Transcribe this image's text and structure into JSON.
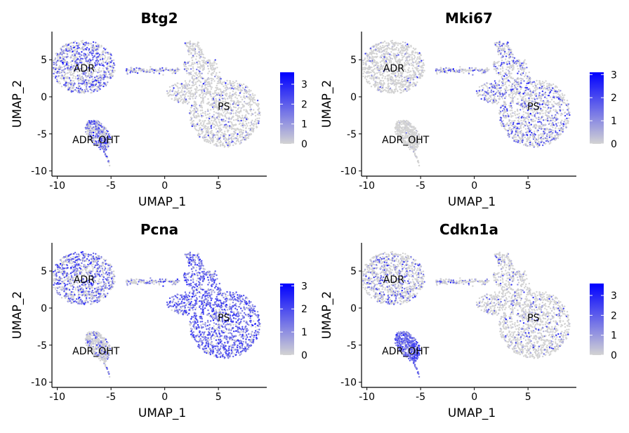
{
  "colors": {
    "low": "#d3d3d3",
    "high": "#0000ff",
    "axis": "#000000"
  },
  "chart_data": [
    {
      "type": "scatter",
      "title": "Btg2",
      "xlabel": "UMAP_1",
      "ylabel": "UMAP_2",
      "xlim": [
        -10.5,
        9.5
      ],
      "ylim": [
        -10.7,
        8.8
      ],
      "xticks": [
        -10,
        -5,
        0,
        5
      ],
      "yticks": [
        -10,
        -5,
        0,
        5
      ],
      "xtick_labels": [
        "-10",
        "-5",
        "0",
        "5"
      ],
      "ytick_labels": [
        "-10",
        "-5",
        "0",
        "5"
      ],
      "cluster_labels": [
        {
          "text": "ADR",
          "x": -7.5,
          "y": 3.9
        },
        {
          "text": "ADR_OHT",
          "x": -6.4,
          "y": -5.8
        },
        {
          "text": "PS",
          "x": 5.5,
          "y": -1.3
        }
      ],
      "color_scale": {
        "min": 0,
        "max": 3.6,
        "ticks": [
          0,
          1,
          2,
          3
        ],
        "tick_labels": [
          "0",
          "1",
          "2",
          "3"
        ]
      },
      "expression_by_cluster": {
        "ADR": 0.45,
        "ADR_OHT": 0.55,
        "PS": 0.08,
        "bridge": 0.35
      }
    },
    {
      "type": "scatter",
      "title": "Mki67",
      "xlabel": "UMAP_1",
      "ylabel": "UMAP_2",
      "xlim": [
        -10.5,
        9.5
      ],
      "ylim": [
        -10.7,
        8.8
      ],
      "xticks": [
        -10,
        -5,
        0,
        5
      ],
      "yticks": [
        -10,
        -5,
        0,
        5
      ],
      "xtick_labels": [
        "-10",
        "-5",
        "0",
        "5"
      ],
      "ytick_labels": [
        "-10",
        "-5",
        "0",
        "5"
      ],
      "cluster_labels": [
        {
          "text": "ADR",
          "x": -7.5,
          "y": 3.9
        },
        {
          "text": "ADR_OHT",
          "x": -6.4,
          "y": -5.8
        },
        {
          "text": "PS",
          "x": 5.5,
          "y": -1.3
        }
      ],
      "color_scale": {
        "min": 0,
        "max": 3.1,
        "ticks": [
          0,
          1,
          2,
          3
        ],
        "tick_labels": [
          "0",
          "1",
          "2",
          "3"
        ]
      },
      "expression_by_cluster": {
        "ADR": 0.05,
        "ADR_OHT": 0.0,
        "PS": 0.3,
        "bridge": 0.35
      }
    },
    {
      "type": "scatter",
      "title": "Pcna",
      "xlabel": "UMAP_1",
      "ylabel": "UMAP_2",
      "xlim": [
        -10.5,
        9.5
      ],
      "ylim": [
        -10.7,
        8.8
      ],
      "xticks": [
        -10,
        -5,
        0,
        5
      ],
      "yticks": [
        -10,
        -5,
        0,
        5
      ],
      "xtick_labels": [
        "-10",
        "-5",
        "0",
        "5"
      ],
      "ytick_labels": [
        "-10",
        "-5",
        "0",
        "5"
      ],
      "cluster_labels": [
        {
          "text": "ADR",
          "x": -7.5,
          "y": 3.9
        },
        {
          "text": "ADR_OHT",
          "x": -6.4,
          "y": -5.8
        },
        {
          "text": "PS",
          "x": 5.5,
          "y": -1.3
        }
      ],
      "color_scale": {
        "min": 0,
        "max": 3.1,
        "ticks": [
          0,
          1,
          2,
          3
        ],
        "tick_labels": [
          "0",
          "1",
          "2",
          "3"
        ]
      },
      "expression_by_cluster": {
        "ADR": 0.55,
        "ADR_OHT": 0.2,
        "PS": 0.8,
        "bridge": 0.4
      }
    },
    {
      "type": "scatter",
      "title": "Cdkn1a",
      "xlabel": "UMAP_1",
      "ylabel": "UMAP_2",
      "xlim": [
        -10.5,
        9.5
      ],
      "ylim": [
        -10.7,
        8.8
      ],
      "xticks": [
        -10,
        -5,
        0,
        5
      ],
      "yticks": [
        -10,
        -5,
        0,
        5
      ],
      "xtick_labels": [
        "-10",
        "-5",
        "0",
        "5"
      ],
      "ytick_labels": [
        "-10",
        "-5",
        "0",
        "5"
      ],
      "cluster_labels": [
        {
          "text": "ADR",
          "x": -7.5,
          "y": 3.9
        },
        {
          "text": "ADR_OHT",
          "x": -6.4,
          "y": -5.8
        },
        {
          "text": "PS",
          "x": 5.5,
          "y": -1.3
        }
      ],
      "color_scale": {
        "min": 0,
        "max": 3.6,
        "ticks": [
          0,
          1,
          2,
          3
        ],
        "tick_labels": [
          "0",
          "1",
          "2",
          "3"
        ]
      },
      "expression_by_cluster": {
        "ADR": 0.25,
        "ADR_OHT": 0.95,
        "PS": 0.1,
        "bridge": 0.2
      }
    }
  ]
}
